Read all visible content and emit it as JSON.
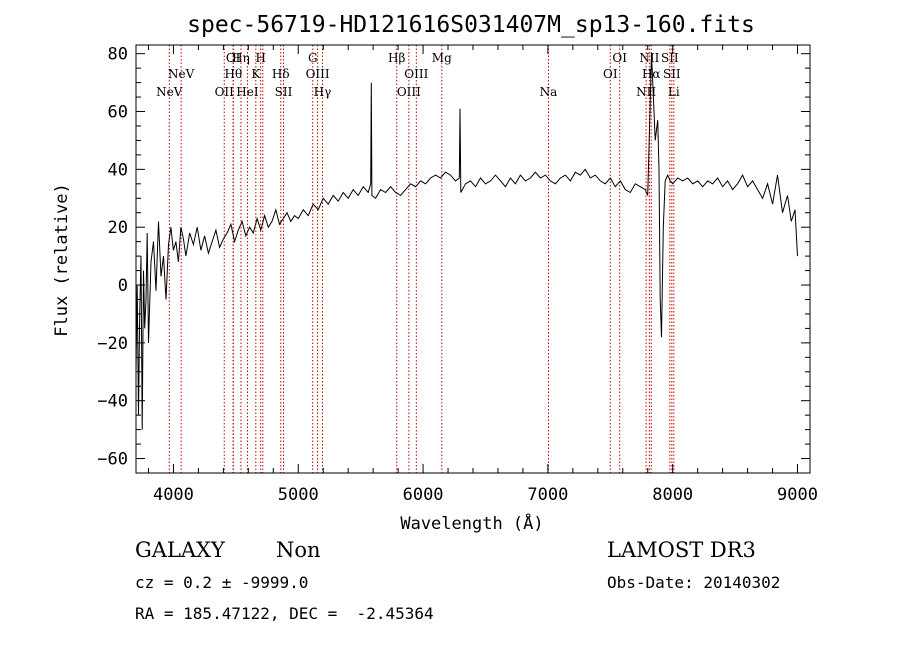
{
  "chart_data": {
    "type": "line",
    "title": "spec-56719-HD121616S031407M_sp13-160.fits",
    "xlabel": "Wavelength (Å)",
    "ylabel": "Flux (relative)",
    "xlim": [
      3700,
      9100
    ],
    "ylim": [
      -65,
      83
    ],
    "xticks": [
      4000,
      5000,
      6000,
      7000,
      8000,
      9000
    ],
    "yticks": [
      -60,
      -40,
      -20,
      0,
      20,
      40,
      60,
      80
    ],
    "series": [
      {
        "name": "flux",
        "x": [
          3700,
          3710,
          3720,
          3730,
          3740,
          3750,
          3760,
          3770,
          3780,
          3790,
          3800,
          3820,
          3840,
          3860,
          3880,
          3900,
          3920,
          3940,
          3960,
          3980,
          4000,
          4020,
          4040,
          4060,
          4080,
          4100,
          4130,
          4160,
          4190,
          4220,
          4250,
          4280,
          4310,
          4340,
          4370,
          4400,
          4430,
          4460,
          4490,
          4520,
          4550,
          4580,
          4610,
          4640,
          4670,
          4700,
          4730,
          4760,
          4790,
          4820,
          4850,
          4880,
          4910,
          4940,
          4970,
          5000,
          5040,
          5080,
          5120,
          5160,
          5200,
          5240,
          5280,
          5320,
          5360,
          5400,
          5440,
          5480,
          5520,
          5560,
          5580,
          5585,
          5590,
          5620,
          5660,
          5700,
          5740,
          5780,
          5820,
          5860,
          5900,
          5940,
          5980,
          6020,
          6060,
          6100,
          6140,
          6180,
          6220,
          6260,
          6290,
          6296,
          6302,
          6340,
          6380,
          6420,
          6460,
          6500,
          6540,
          6580,
          6620,
          6660,
          6700,
          6740,
          6780,
          6820,
          6860,
          6900,
          6940,
          6980,
          7020,
          7060,
          7100,
          7140,
          7180,
          7220,
          7260,
          7300,
          7340,
          7380,
          7420,
          7460,
          7500,
          7540,
          7580,
          7620,
          7660,
          7700,
          7740,
          7780,
          7800,
          7815,
          7830,
          7850,
          7860,
          7880,
          7890,
          7900,
          7910,
          7925,
          7940,
          7960,
          7980,
          8000,
          8040,
          8080,
          8120,
          8160,
          8200,
          8240,
          8280,
          8320,
          8360,
          8400,
          8440,
          8480,
          8520,
          8560,
          8600,
          8640,
          8680,
          8720,
          8760,
          8800,
          8840,
          8880,
          8920,
          8950,
          8980,
          9000
        ],
        "y": [
          -30,
          0,
          -45,
          -10,
          10,
          -50,
          5,
          -15,
          -5,
          18,
          -20,
          8,
          15,
          -2,
          22,
          3,
          10,
          -5,
          14,
          20,
          12,
          15,
          8,
          20,
          16,
          10,
          18,
          14,
          20,
          12,
          17,
          11,
          15,
          19,
          13,
          16,
          18,
          21,
          15,
          19,
          22,
          17,
          20,
          18,
          23,
          19,
          24,
          20,
          22,
          26,
          21,
          23,
          25,
          22,
          24,
          23,
          26,
          24,
          28,
          26,
          30,
          28,
          31,
          29,
          32,
          30,
          33,
          31,
          34,
          32,
          35,
          70,
          31,
          30,
          33,
          32,
          34,
          32,
          31,
          33,
          35,
          34,
          36,
          35,
          37,
          38,
          37,
          39,
          38,
          36,
          37,
          61,
          32,
          35,
          36,
          34,
          37,
          35,
          36,
          38,
          36,
          34,
          37,
          35,
          38,
          36,
          37,
          39,
          37,
          38,
          36,
          35,
          37,
          38,
          36,
          39,
          38,
          40,
          37,
          38,
          36,
          35,
          37,
          34,
          36,
          33,
          32,
          35,
          34,
          33,
          31,
          55,
          80,
          60,
          50,
          57,
          40,
          -5,
          -18,
          20,
          36,
          38,
          36,
          35,
          37,
          36,
          37,
          35,
          36,
          34,
          36,
          35,
          37,
          34,
          36,
          33,
          35,
          38,
          34,
          36,
          33,
          30,
          35,
          28,
          38,
          25,
          31,
          22,
          26,
          10
        ],
        "color": "#000000"
      }
    ],
    "line_color": "#cc0000",
    "lines": [
      {
        "w": 3967,
        "label": "NeV",
        "row": 3
      },
      {
        "w": 4062,
        "label": "NeV",
        "row": 2
      },
      {
        "w": 4407,
        "label": "OII",
        "row": 3
      },
      {
        "w": 4478,
        "label": "OI",
        "row": 1
      },
      {
        "w": 4480,
        "label": "Hθ",
        "row": 2
      },
      {
        "w": 4541,
        "label": "Hη",
        "row": 1
      },
      {
        "w": 4593,
        "label": "HeI",
        "row": 3
      },
      {
        "w": 4660,
        "label": "K",
        "row": 2
      },
      {
        "w": 4699,
        "label": "H",
        "row": 1
      },
      {
        "w": 4716,
        "label": "",
        "row": 0
      },
      {
        "w": 4860,
        "label": "Hδ",
        "row": 2
      },
      {
        "w": 4882,
        "label": "SII",
        "row": 3
      },
      {
        "w": 5116,
        "label": "G",
        "row": 1
      },
      {
        "w": 5155,
        "label": "OIII",
        "row": 2
      },
      {
        "w": 5194,
        "label": "Hγ",
        "row": 3
      },
      {
        "w": 5789,
        "label": "Hβ",
        "row": 1
      },
      {
        "w": 5886,
        "label": "OIII",
        "row": 3
      },
      {
        "w": 5946,
        "label": "OIII",
        "row": 2
      },
      {
        "w": 6150,
        "label": "Mg",
        "row": 1
      },
      {
        "w": 7005,
        "label": "Na",
        "row": 3
      },
      {
        "w": 7500,
        "label": "OI",
        "row": 2
      },
      {
        "w": 7575,
        "label": "OI",
        "row": 1
      },
      {
        "w": 7787,
        "label": "NII",
        "row": 3
      },
      {
        "w": 7813,
        "label": "NII",
        "row": 1
      },
      {
        "w": 7828,
        "label": "Hα",
        "row": 2
      },
      {
        "w": 7977,
        "label": "SII",
        "row": 1
      },
      {
        "w": 7993,
        "label": "SII",
        "row": 2
      },
      {
        "w": 8009,
        "label": "Li",
        "row": 3
      }
    ]
  },
  "info": {
    "object_type": "GALAXY",
    "subclass": "Non",
    "survey": "LAMOST DR3",
    "redshift": "cz = 0.2 ± -9999.0",
    "obs_date": "Obs-Date: 20140302",
    "coords": "RA = 185.47122, DEC =  -2.45364"
  }
}
